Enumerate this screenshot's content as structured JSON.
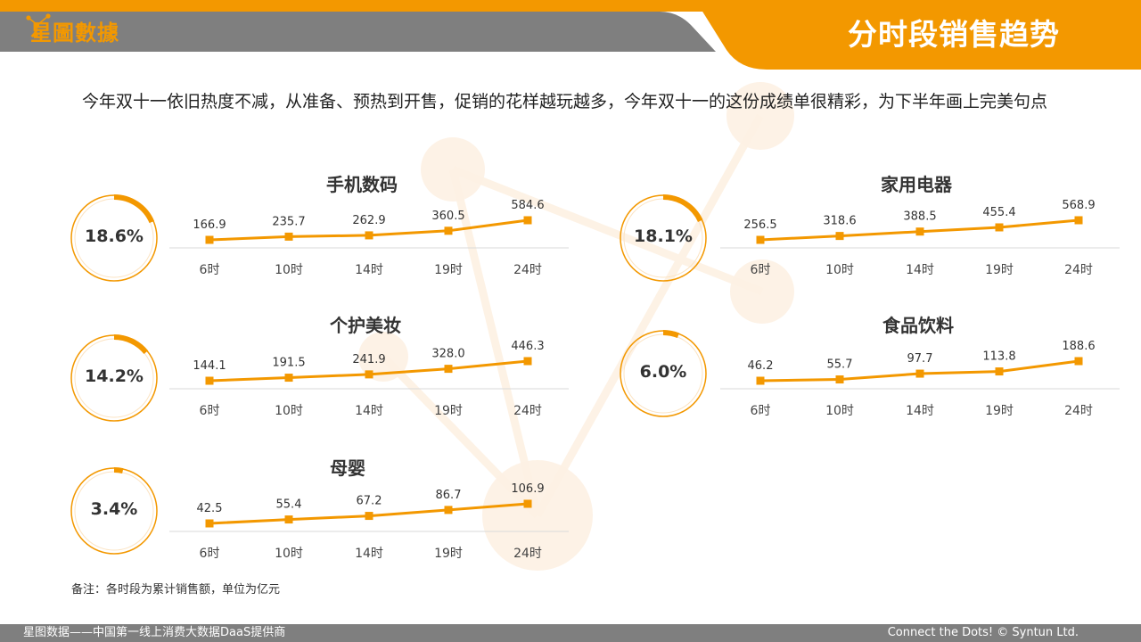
{
  "header": {
    "logo_text": "星圖數據",
    "page_title": "分时段销售趋势"
  },
  "intro_text": "今年双十一依旧热度不减，从准备、预热到开售，促销的花样越玩越多，今年双十一的这份成绩单很精彩，为下半年画上完美句点",
  "colors": {
    "accent": "#f39800",
    "header_gray": "#7f7f7f",
    "axis_gray": "#d9d9d9"
  },
  "chart_data": [
    {
      "type": "line",
      "title": "手机数码",
      "share": "18.6%",
      "share_value": 18.6,
      "categories": [
        "6时",
        "10时",
        "14时",
        "19时",
        "24时"
      ],
      "values": [
        166.9,
        235.7,
        262.9,
        360.5,
        584.6
      ],
      "value_labels": [
        "166.9",
        "235.7",
        "262.9",
        "360.5",
        "584.6"
      ]
    },
    {
      "type": "line",
      "title": "家用电器",
      "share": "18.1%",
      "share_value": 18.1,
      "categories": [
        "6时",
        "10时",
        "14时",
        "19时",
        "24时"
      ],
      "values": [
        256.5,
        318.6,
        388.5,
        455.4,
        568.9
      ],
      "value_labels": [
        "256.5",
        "318.6",
        "388.5",
        "455.4",
        "568.9"
      ]
    },
    {
      "type": "line",
      "title": "个护美妆",
      "share": "14.2%",
      "share_value": 14.2,
      "categories": [
        "6时",
        "10时",
        "14时",
        "19时",
        "24时"
      ],
      "values": [
        144.1,
        191.5,
        241.9,
        328.0,
        446.3
      ],
      "value_labels": [
        "144.1",
        "191.5",
        "241.9",
        "328.0",
        "446.3"
      ]
    },
    {
      "type": "line",
      "title": "食品饮料",
      "share": "6.0%",
      "share_value": 6.0,
      "categories": [
        "6时",
        "10时",
        "14时",
        "19时",
        "24时"
      ],
      "values": [
        46.2,
        55.7,
        97.7,
        113.8,
        188.6
      ],
      "value_labels": [
        "46.2",
        "55.7",
        "97.7",
        "113.8",
        "188.6"
      ]
    },
    {
      "type": "line",
      "title": "母婴",
      "share": "3.4%",
      "share_value": 3.4,
      "categories": [
        "6时",
        "10时",
        "14时",
        "19时",
        "24时"
      ],
      "values": [
        42.5,
        55.4,
        67.2,
        86.7,
        106.9
      ],
      "value_labels": [
        "42.5",
        "55.4",
        "67.2",
        "86.7",
        "106.9"
      ]
    }
  ],
  "note": "备注：各时段为累计销售额，单位为亿元",
  "footer": {
    "left": "星图数据——中国第一线上消费大数据DaaS提供商",
    "right": "Connect the Dots! © Syntun Ltd."
  }
}
